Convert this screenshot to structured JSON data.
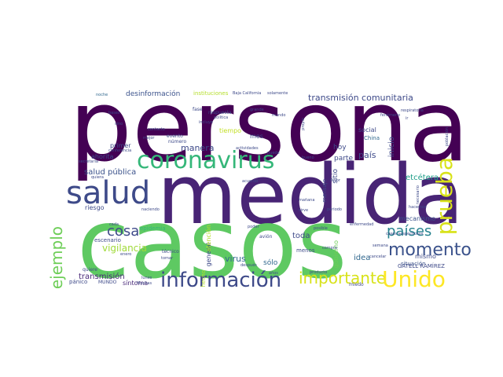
{
  "palette": {
    "dark": "#440154",
    "indigo": "#3b528b",
    "blue": "#31688e",
    "teal": "#21918c",
    "green": "#35b779",
    "lime": "#5ec962",
    "yellow": "#c8e020",
    "gold": "#fde725"
  },
  "words": [
    {
      "id": "persona",
      "text": "persona",
      "color": "#440154"
    },
    {
      "id": "medida",
      "text": "medida",
      "color": "#482475"
    },
    {
      "id": "casos",
      "text": "casos",
      "color": "#5ec962"
    },
    {
      "id": "salud",
      "text": "salud",
      "color": "#3e4a89"
    },
    {
      "id": "coronavirus",
      "text": "coronavirus",
      "color": "#35b779"
    },
    {
      "id": "prueba",
      "text": "prueba",
      "color": "#d8e219"
    },
    {
      "id": "informacion",
      "text": "información",
      "color": "#3e4a89"
    },
    {
      "id": "importante",
      "text": "importante",
      "color": "#d8e219"
    },
    {
      "id": "unido",
      "text": "Unido",
      "color": "#fde725"
    },
    {
      "id": "momento",
      "text": "momento",
      "color": "#3b528b"
    },
    {
      "id": "paises",
      "text": "países",
      "color": "#26828e"
    },
    {
      "id": "cosa",
      "text": "cosa",
      "color": "#3e4a89"
    },
    {
      "id": "ejemplo",
      "text": "ejemplo",
      "color": "#6ece58"
    },
    {
      "id": "transmision-comunitaria",
      "text": "transmisión comunitaria",
      "color": "#3e4a89"
    },
    {
      "id": "desinformacion",
      "text": "desinformación",
      "color": "#3b528b"
    },
    {
      "id": "manera",
      "text": "manera",
      "color": "#3e4a89"
    },
    {
      "id": "salud-publica",
      "text": "salud pública",
      "color": "#3b528b"
    },
    {
      "id": "etcetera",
      "text": "etcétera",
      "color": "#1f9e89"
    },
    {
      "id": "vigilancia",
      "text": "vigilancia",
      "color": "#a0da39"
    },
    {
      "id": "mecanismo",
      "text": "mecanismo",
      "color": "#3b528b"
    },
    {
      "id": "situacion",
      "text": "situación",
      "color": "#3b528b"
    },
    {
      "id": "gatell-ramirez",
      "text": "GATELL RAMÍREZ",
      "color": "#3e4a89"
    },
    {
      "id": "mismo",
      "text": "mismo",
      "color": "#3e4a89"
    },
    {
      "id": "transmision",
      "text": "transmisión",
      "color": "#482878"
    },
    {
      "id": "sintoma",
      "text": "síntoma",
      "color": "#482878"
    },
    {
      "id": "virus",
      "text": "virus",
      "color": "#31688e"
    },
    {
      "id": "solo",
      "text": "sólo",
      "color": "#31688e"
    },
    {
      "id": "toda",
      "text": "toda",
      "color": "#3e4a89"
    },
    {
      "id": "idea",
      "text": "idea",
      "color": "#31688e"
    },
    {
      "id": "hoy",
      "text": "hoy",
      "color": "#3e4a89"
    },
    {
      "id": "pais",
      "text": "país",
      "color": "#3e4a89"
    },
    {
      "id": "parte",
      "text": "parte",
      "color": "#3e4a89"
    },
    {
      "id": "inicio",
      "text": "inicio",
      "color": "#3e4a89"
    },
    {
      "id": "primer",
      "text": "primer",
      "color": "#3e4a89"
    },
    {
      "id": "ahorita",
      "text": "ahorita",
      "color": "#3e4a89"
    },
    {
      "id": "riesgo",
      "text": "riesgo",
      "color": "#3e4a89"
    },
    {
      "id": "tiempo",
      "text": "tiempo",
      "color": "#c2df23"
    },
    {
      "id": "mes",
      "text": "mes",
      "color": "#3e4a89"
    },
    {
      "id": "epidemia",
      "text": "epidemia",
      "color": "#35b779"
    },
    {
      "id": "escenario",
      "text": "escenario",
      "color": "#3e4a89"
    },
    {
      "id": "social",
      "text": "social",
      "color": "#3e4a89"
    },
    {
      "id": "china",
      "text": "China",
      "color": "#31688e"
    },
    {
      "id": "gobierno",
      "text": "gobierno",
      "color": "#6ece58"
    },
    {
      "id": "general",
      "text": "general",
      "color": "#3e4a89"
    },
    {
      "id": "atencion",
      "text": "atención",
      "color": "#b5de2b"
    },
    {
      "id": "hecho",
      "text": "hecho",
      "color": "#b5de2b"
    },
    {
      "id": "sitio",
      "text": "sitio",
      "color": "#3e4a89"
    },
    {
      "id": "mensaje",
      "text": "mensaje",
      "color": "#3e4a89"
    },
    {
      "id": "menos",
      "text": "menos",
      "color": "#3e4a89"
    },
    {
      "id": "panico",
      "text": "pánico",
      "color": "#3e4a89"
    },
    {
      "id": "noche",
      "text": "noche",
      "color": "#31688e"
    },
    {
      "id": "instituciones",
      "text": "instituciones",
      "color": "#b5de2b"
    },
    {
      "id": "baja-california",
      "text": "Baja California",
      "color": "#3e4a89"
    },
    {
      "id": "solamente",
      "text": "solamente",
      "color": "#3e4a89"
    },
    {
      "id": "fase",
      "text": "fase",
      "color": "#3e4a89"
    },
    {
      "id": "respuesta",
      "text": "respuesta",
      "color": "#3e4a89"
    },
    {
      "id": "politica",
      "text": "política",
      "color": "#3e4a89"
    },
    {
      "id": "incluye",
      "text": "incluye",
      "color": "#3e4a89"
    },
    {
      "id": "grande",
      "text": "grande",
      "color": "#3e4a89"
    },
    {
      "id": "mundo",
      "text": "mundo",
      "color": "#3e4a89"
    },
    {
      "id": "bases",
      "text": "bases",
      "color": "#3e4a89"
    },
    {
      "id": "sino",
      "text": "sino",
      "color": "#3e4a89"
    },
    {
      "id": "conferencia",
      "text": "conferencia",
      "color": "#3e4a89"
    },
    {
      "id": "contacto",
      "text": "contacto",
      "color": "#3e4a89"
    },
    {
      "id": "mejor",
      "text": "mejor",
      "color": "#3e4a89"
    },
    {
      "id": "evento",
      "text": "evento",
      "color": "#3e4a89"
    },
    {
      "id": "numero",
      "text": "número",
      "color": "#3e4a89"
    },
    {
      "id": "actividades",
      "text": "actividades",
      "color": "#3e4a89"
    },
    {
      "id": "propio",
      "text": "propio",
      "color": "#3e4a89"
    },
    {
      "id": "respiratoria",
      "text": "respiratoria",
      "color": "#3e4a89"
    },
    {
      "id": "ir",
      "text": "ir",
      "color": "#3e4a89"
    },
    {
      "id": "fenomeno",
      "text": "fenómeno",
      "color": "#3e4a89"
    },
    {
      "id": "secretaria",
      "text": "secretaría",
      "color": "#3e4a89"
    },
    {
      "id": "quiera",
      "text": "quiera",
      "color": "#3e4a89"
    },
    {
      "id": "puede",
      "text": "puede",
      "color": "#3e4a89"
    },
    {
      "id": "acuerdo",
      "text": "acuerdo",
      "color": "#3e4a89"
    },
    {
      "id": "bueno",
      "text": "bueno",
      "color": "#3e4a89"
    },
    {
      "id": "favor",
      "text": "favor",
      "color": "#3e4a89"
    },
    {
      "id": "hacemos",
      "text": "hacemos",
      "color": "#3e4a89"
    },
    {
      "id": "manana",
      "text": "mañana",
      "color": "#3e4a89"
    },
    {
      "id": "poblacion",
      "text": "población",
      "color": "#3e4a89"
    },
    {
      "id": "necesario",
      "text": "necesario",
      "color": "#3e4a89"
    },
    {
      "id": "naciendo",
      "text": "naciendo",
      "color": "#3e4a89"
    },
    {
      "id": "sirve",
      "text": "sirve",
      "color": "#3e4a89"
    },
    {
      "id": "periodo",
      "text": "periodo",
      "color": "#3e4a89"
    },
    {
      "id": "cada",
      "text": "cada",
      "color": "#3e4a89"
    },
    {
      "id": "poder",
      "text": "poder",
      "color": "#3e4a89"
    },
    {
      "id": "avion",
      "text": "avión",
      "color": "#3e4a89"
    },
    {
      "id": "posible",
      "text": "posible",
      "color": "#3e4a89"
    },
    {
      "id": "enfermedad",
      "text": "enfermedad",
      "color": "#3e4a89"
    },
    {
      "id": "casos-sospechosos",
      "text": "casos sospechosos",
      "color": "#3e4a89"
    },
    {
      "id": "enero",
      "text": "enero",
      "color": "#3e4a89"
    },
    {
      "id": "tecnico",
      "text": "técnico",
      "color": "#3e4a89"
    },
    {
      "id": "tomar",
      "text": "tomar",
      "color": "#3e4a89"
    },
    {
      "id": "compra",
      "text": "compra",
      "color": "#3e4a89"
    },
    {
      "id": "semana",
      "text": "semana",
      "color": "#3e4a89"
    },
    {
      "id": "cancelar",
      "text": "cancelar",
      "color": "#3e4a89"
    },
    {
      "id": "quiere",
      "text": "quiere",
      "color": "#3e4a89"
    },
    {
      "id": "lunes",
      "text": "lunes",
      "color": "#3e4a89"
    },
    {
      "id": "despues",
      "text": "después",
      "color": "#3e4a89"
    },
    {
      "id": "anos",
      "text": "años",
      "color": "#3e4a89"
    },
    {
      "id": "producto",
      "text": "producto",
      "color": "#3e4a89"
    },
    {
      "id": "miedo",
      "text": "miedo",
      "color": "#3e4a89"
    },
    {
      "id": "mundo-2",
      "text": "MUNDO",
      "color": "#3e4a89"
    },
    {
      "id": "muchas",
      "text": "Muchas",
      "color": "#3e4a89"
    }
  ]
}
